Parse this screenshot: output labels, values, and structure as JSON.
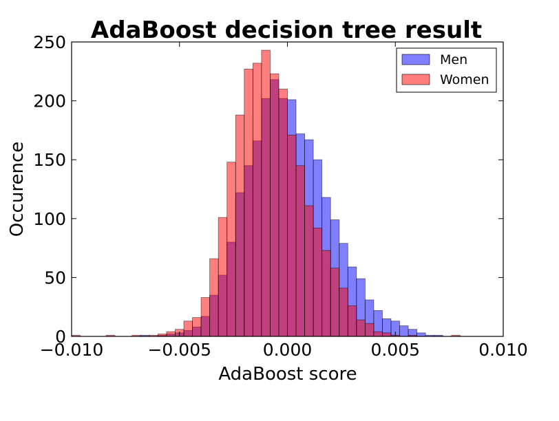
{
  "chart_data": {
    "type": "histogram",
    "title": "AdaBoost decision tree result",
    "xlabel": "AdaBoost score",
    "ylabel": "Occurence",
    "xlim": [
      -0.01,
      0.01
    ],
    "ylim": [
      0,
      250
    ],
    "xticks": [
      -0.01,
      -0.005,
      0.0,
      0.005,
      0.01
    ],
    "xtick_labels": [
      "−0.010",
      "−0.005",
      "0.000",
      "0.005",
      "0.010"
    ],
    "yticks": [
      0,
      50,
      100,
      150,
      200,
      250
    ],
    "ytick_labels": [
      "0",
      "50",
      "100",
      "150",
      "200",
      "250"
    ],
    "bin_edges": [
      -0.01,
      -0.0096,
      -0.0092,
      -0.0088,
      -0.0084,
      -0.008,
      -0.0076,
      -0.0072,
      -0.0068,
      -0.0064,
      -0.006,
      -0.0056,
      -0.0052,
      -0.0048,
      -0.0044,
      -0.004,
      -0.0036,
      -0.0032,
      -0.0028,
      -0.0024,
      -0.002,
      -0.0016,
      -0.0012,
      -0.0008,
      -0.0004,
      0.0,
      0.0004,
      0.0008,
      0.0012,
      0.0016,
      0.002,
      0.0024,
      0.0028,
      0.0032,
      0.0036,
      0.004,
      0.0044,
      0.0048,
      0.0052,
      0.0056,
      0.006,
      0.0064,
      0.0068,
      0.0072,
      0.0076,
      0.008,
      0.0084,
      0.0088,
      0.0092,
      0.0096,
      0.01
    ],
    "series": [
      {
        "name": "Men",
        "color": "#0000ff",
        "alpha": 0.5,
        "values": [
          0,
          0,
          0,
          0,
          0,
          0,
          0,
          0,
          1,
          0,
          1,
          2,
          3,
          5,
          8,
          17,
          35,
          52,
          80,
          122,
          145,
          166,
          202,
          218,
          202,
          201,
          172,
          167,
          150,
          118,
          99,
          79,
          59,
          49,
          31,
          22,
          15,
          13,
          9,
          6,
          3,
          1,
          1,
          0,
          0,
          0,
          0,
          0,
          0,
          0
        ]
      },
      {
        "name": "Women",
        "color": "#ff0000",
        "alpha": 0.5,
        "values": [
          1,
          0,
          0,
          0,
          1,
          0,
          0,
          1,
          0,
          1,
          2,
          4,
          6,
          13,
          16,
          33,
          66,
          101,
          148,
          188,
          227,
          232,
          243,
          223,
          210,
          171,
          145,
          111,
          92,
          73,
          58,
          41,
          26,
          14,
          11,
          4,
          3,
          1,
          0,
          1,
          0,
          0,
          0,
          0,
          1,
          0,
          0,
          0,
          0,
          0
        ]
      }
    ],
    "legend": {
      "position": "top-right",
      "entries": [
        "Men",
        "Women"
      ]
    },
    "grid": false
  }
}
